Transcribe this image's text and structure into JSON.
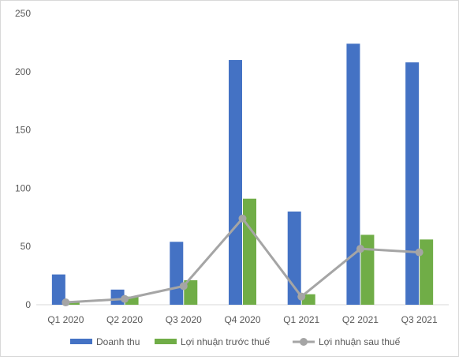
{
  "chart_data": {
    "type": "bar",
    "categories": [
      "Q1 2020",
      "Q2 2020",
      "Q3 2020",
      "Q4 2020",
      "Q1 2021",
      "Q2 2021",
      "Q3 2021"
    ],
    "series": [
      {
        "name": "Doanh thu",
        "kind": "bar",
        "color": "#4472c4",
        "values": [
          26,
          13,
          54,
          210,
          80,
          224,
          208
        ]
      },
      {
        "name": "Lợi nhuận trước thuế",
        "kind": "bar",
        "color": "#70ad47",
        "values": [
          2,
          7,
          21,
          91,
          9,
          60,
          56
        ]
      },
      {
        "name": "Lợi nhuận sau thuế",
        "kind": "line",
        "color": "#a5a5a5",
        "values": [
          2,
          5,
          16,
          74,
          7,
          48,
          45
        ]
      }
    ],
    "yticks": [
      0,
      50,
      100,
      150,
      200,
      250
    ],
    "ylim": [
      0,
      250
    ],
    "grid": false,
    "legend_position": "bottom",
    "title": "",
    "xlabel": "",
    "ylabel": ""
  }
}
